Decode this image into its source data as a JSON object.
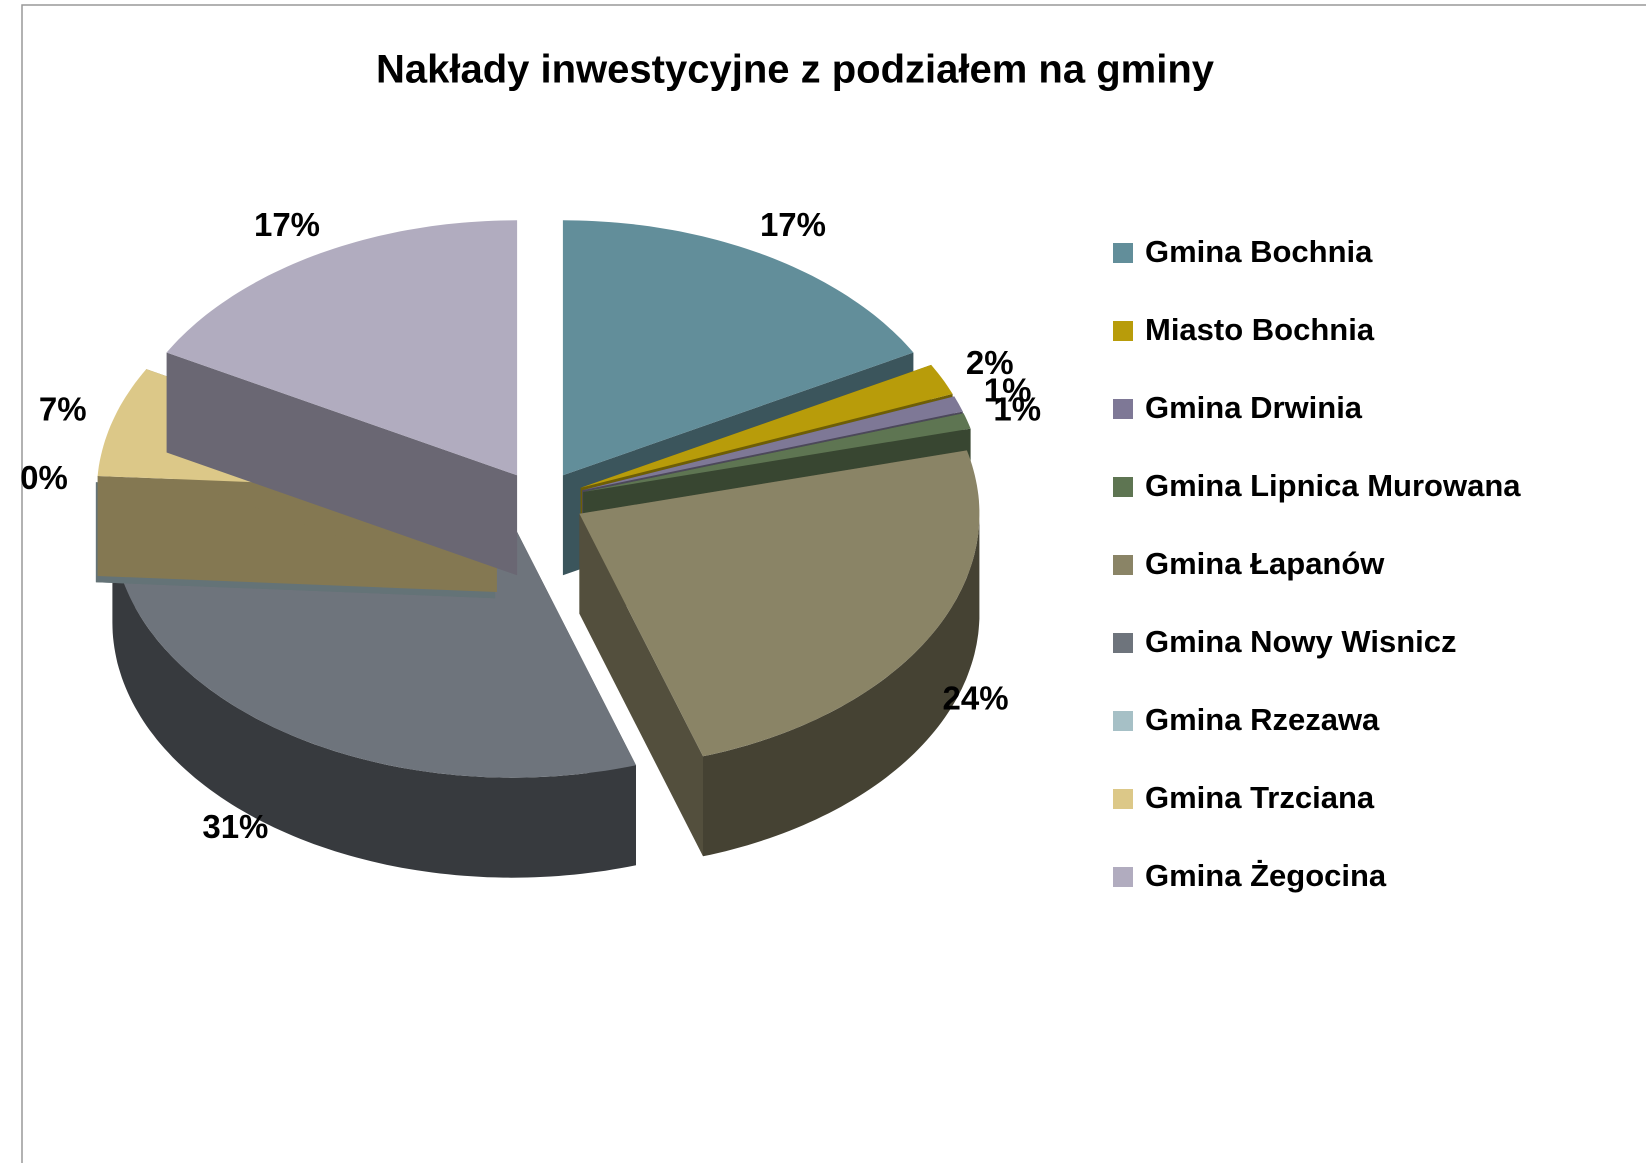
{
  "chart_data": {
    "type": "pie3d",
    "title": "Nakłady inwestycyjne z podziałem na gminy",
    "categories": [
      "Gmina Bochnia",
      "Miasto Bochnia",
      "Gmina Drwinia",
      "Gmina Lipnica Murowana",
      "Gmina Łapanów",
      "Gmina Nowy Wisnicz",
      "Gmina Rzezawa",
      "Gmina Trzciana",
      "Gmina Żegocina"
    ],
    "values": [
      17,
      2,
      1,
      1,
      24,
      31,
      0,
      7,
      17
    ],
    "value_labels": [
      "17%",
      "2%",
      "1%",
      "1%",
      "24%",
      "31%",
      "0%",
      "7%",
      "17%"
    ],
    "colors": [
      "#628e9a",
      "#b89c0a",
      "#7e7896",
      "#5e7552",
      "#8a8466",
      "#6e747c",
      "#a6c0c6",
      "#dcc888",
      "#b1acbf"
    ],
    "legend": "right"
  }
}
